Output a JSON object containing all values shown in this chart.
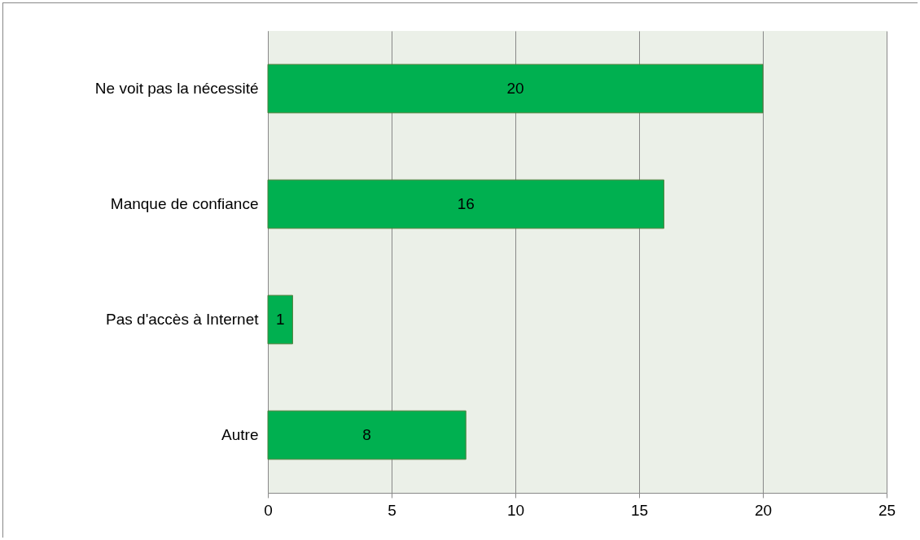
{
  "chart_data": {
    "type": "bar",
    "orientation": "horizontal",
    "categories": [
      "Ne voit pas la nécessité",
      "Manque de confiance",
      "Pas d'accès à Internet",
      "Autre"
    ],
    "values": [
      20,
      16,
      1,
      8
    ],
    "color": "#00b050",
    "xlim": [
      0,
      25
    ],
    "xticks": [
      0,
      5,
      10,
      15,
      20,
      25
    ],
    "grid": "x",
    "data_labels": true
  }
}
